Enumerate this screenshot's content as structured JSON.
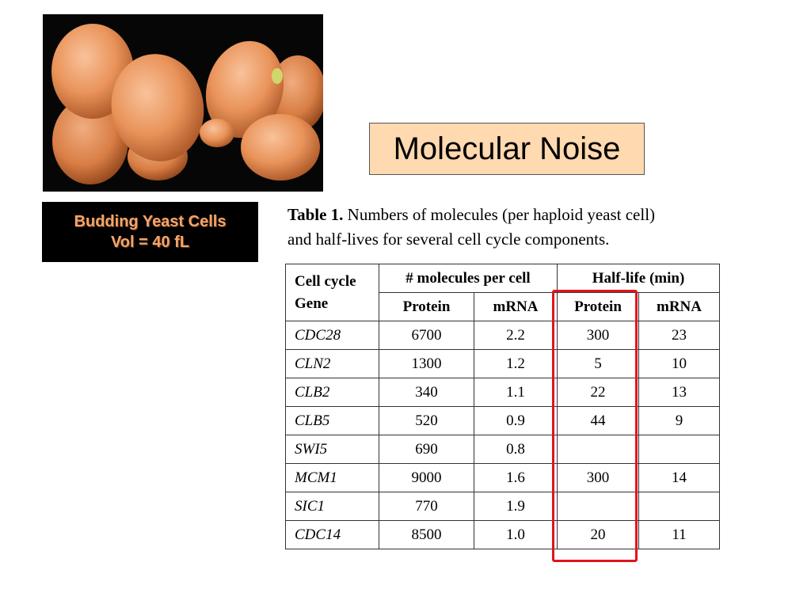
{
  "slide": {
    "title": "Molecular Noise",
    "caption": {
      "line1": "Budding Yeast Cells",
      "line2": "Vol = 40 fL"
    },
    "table_caption": {
      "label": "Table 1.",
      "line1": " Numbers of molecules (per haploid yeast cell)",
      "line2": "and half-lives for several cell cycle components."
    }
  },
  "table": {
    "header": {
      "gene": "Cell cycle Gene",
      "molecules_group": "# molecules per cell",
      "halflife_group": "Half-life (min)",
      "protein": "Protein",
      "mrna": "mRNA",
      "hl_protein": "Protein",
      "hl_mrna": "mRNA"
    },
    "rows": [
      {
        "gene": "CDC28",
        "protein": "6700",
        "mrna": "2.2",
        "hl_protein": "300",
        "hl_mrna": "23"
      },
      {
        "gene": "CLN2",
        "protein": "1300",
        "mrna": "1.2",
        "hl_protein": "5",
        "hl_mrna": "10"
      },
      {
        "gene": "CLB2",
        "protein": "340",
        "mrna": "1.1",
        "hl_protein": "22",
        "hl_mrna": "13"
      },
      {
        "gene": "CLB5",
        "protein": "520",
        "mrna": "0.9",
        "hl_protein": "44",
        "hl_mrna": "9"
      },
      {
        "gene": "SWI5",
        "protein": "690",
        "mrna": "0.8",
        "hl_protein": "",
        "hl_mrna": ""
      },
      {
        "gene": "MCM1",
        "protein": "9000",
        "mrna": "1.6",
        "hl_protein": "300",
        "hl_mrna": "14"
      },
      {
        "gene": "SIC1",
        "protein": "770",
        "mrna": "1.9",
        "hl_protein": "",
        "hl_mrna": ""
      },
      {
        "gene": "CDC14",
        "protein": "8500",
        "mrna": "1.0",
        "hl_protein": "20",
        "hl_mrna": "11"
      }
    ]
  },
  "colors": {
    "title_bg": "#ffd9b0",
    "caption_text": "#f2a46a",
    "highlight": "#e0141c",
    "cell_fill": "#e9935a"
  }
}
